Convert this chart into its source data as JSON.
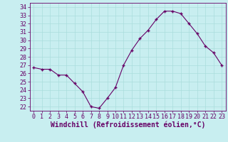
{
  "x": [
    0,
    1,
    2,
    3,
    4,
    5,
    6,
    7,
    8,
    9,
    10,
    11,
    12,
    13,
    14,
    15,
    16,
    17,
    18,
    19,
    20,
    21,
    22,
    23
  ],
  "y": [
    26.7,
    26.5,
    26.5,
    25.8,
    25.8,
    24.8,
    23.8,
    22.0,
    21.8,
    23.0,
    24.3,
    27.0,
    28.8,
    30.2,
    31.2,
    32.5,
    33.5,
    33.5,
    33.2,
    32.0,
    30.8,
    29.3,
    28.5,
    27.0
  ],
  "line_color": "#660066",
  "marker": "+",
  "bg_color": "#c8eef0",
  "grid_color": "#aadddd",
  "xlabel": "Windchill (Refroidissement éolien,°C)",
  "xlabel_color": "#660066",
  "tick_color": "#660066",
  "ylim": [
    21.5,
    34.5
  ],
  "xlim": [
    -0.5,
    23.5
  ],
  "yticks": [
    22,
    23,
    24,
    25,
    26,
    27,
    28,
    29,
    30,
    31,
    32,
    33,
    34
  ],
  "xticks": [
    0,
    1,
    2,
    3,
    4,
    5,
    6,
    7,
    8,
    9,
    10,
    11,
    12,
    13,
    14,
    15,
    16,
    17,
    18,
    19,
    20,
    21,
    22,
    23
  ],
  "axis_fontsize": 6.5,
  "tick_fontsize": 6.0,
  "xlabel_fontsize": 7.0
}
